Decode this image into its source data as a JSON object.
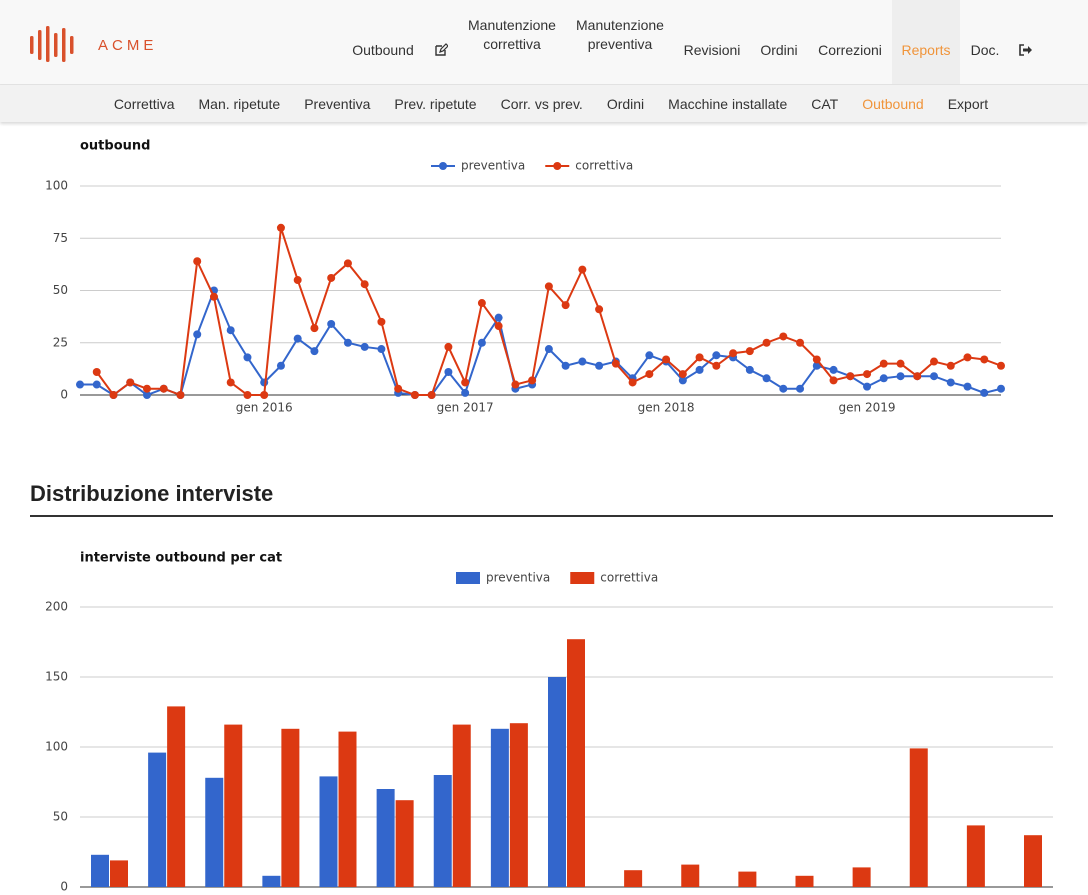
{
  "header": {
    "logo": "ACME",
    "nav": [
      {
        "label": "Outbound"
      },
      {
        "label": "Manutenzione correttiva"
      },
      {
        "label": "Manutenzione preventiva"
      },
      {
        "label": "Revisioni"
      },
      {
        "label": "Ordini"
      },
      {
        "label": "Correzioni"
      },
      {
        "label": "Reports",
        "active": true
      },
      {
        "label": "Doc."
      }
    ],
    "subnav": [
      {
        "label": "Correttiva"
      },
      {
        "label": "Man. ripetute"
      },
      {
        "label": "Preventiva"
      },
      {
        "label": "Prev. ripetute"
      },
      {
        "label": "Corr. vs prev."
      },
      {
        "label": "Ordini"
      },
      {
        "label": "Macchine installate"
      },
      {
        "label": "CAT"
      },
      {
        "label": "Outbound",
        "active": true
      },
      {
        "label": "Export"
      }
    ]
  },
  "section_title": "Distribuzione interviste",
  "chart_data": [
    {
      "type": "line",
      "title": "outbound",
      "x": [
        "2015-02",
        "2015-03",
        "2015-04",
        "2015-05",
        "2015-06",
        "2015-07",
        "2015-08",
        "2015-09",
        "2015-10",
        "2015-11",
        "2015-12",
        "2016-01",
        "2016-02",
        "2016-03",
        "2016-04",
        "2016-05",
        "2016-06",
        "2016-07",
        "2016-08",
        "2016-09",
        "2016-10",
        "2016-11",
        "2016-12",
        "2017-01",
        "2017-02",
        "2017-03",
        "2017-04",
        "2017-05",
        "2017-06",
        "2017-07",
        "2017-08",
        "2017-09",
        "2017-10",
        "2017-11",
        "2017-12",
        "2018-01",
        "2018-02",
        "2018-03",
        "2018-04",
        "2018-05",
        "2018-06",
        "2018-07",
        "2018-08",
        "2018-09",
        "2018-10",
        "2018-11",
        "2018-12",
        "2019-01",
        "2019-02",
        "2019-03",
        "2019-04",
        "2019-05",
        "2019-06",
        "2019-07",
        "2019-08",
        "2019-09"
      ],
      "series": [
        {
          "name": "preventiva",
          "color": "#3366cc",
          "values": [
            5,
            5,
            0,
            6,
            0,
            3,
            0,
            29,
            50,
            31,
            18,
            6,
            14,
            27,
            21,
            34,
            25,
            23,
            22,
            1,
            0,
            0,
            11,
            1,
            25,
            37,
            3,
            5,
            22,
            14,
            16,
            14,
            16,
            8,
            19,
            16,
            7,
            12,
            19,
            18,
            12,
            8,
            3,
            3,
            14,
            12,
            9,
            4,
            8,
            9,
            9,
            9,
            6,
            4,
            1,
            3
          ]
        },
        {
          "name": "correttiva",
          "color": "#dc3912",
          "values": [
            null,
            11,
            0,
            6,
            3,
            3,
            0,
            64,
            47,
            6,
            0,
            0,
            80,
            55,
            32,
            56,
            63,
            53,
            35,
            3,
            0,
            0,
            23,
            6,
            44,
            33,
            5,
            7,
            52,
            43,
            60,
            41,
            15,
            6,
            10,
            17,
            10,
            18,
            14,
            20,
            21,
            25,
            28,
            25,
            17,
            7,
            9,
            10,
            15,
            15,
            9,
            16,
            14,
            18,
            17,
            14
          ]
        }
      ],
      "xticks": [
        {
          "value": "2016-01",
          "label": "gen 2016"
        },
        {
          "value": "2017-01",
          "label": "gen 2017"
        },
        {
          "value": "2018-01",
          "label": "gen 2018"
        },
        {
          "value": "2019-01",
          "label": "gen 2019"
        }
      ],
      "ylim": [
        0,
        100
      ],
      "yticks": [
        0,
        25,
        50,
        75,
        100
      ],
      "grid": true,
      "legend": "top"
    },
    {
      "type": "bar",
      "title": "interviste outbound per cat",
      "categories": [
        null,
        null,
        null,
        null,
        null,
        null,
        null,
        null,
        null,
        null,
        null,
        null,
        null,
        null,
        null,
        null,
        null
      ],
      "series": [
        {
          "name": "preventiva",
          "color": "#3366cc",
          "values": [
            23,
            96,
            78,
            8,
            79,
            70,
            80,
            113,
            150,
            null,
            null,
            null,
            null,
            null,
            null,
            null,
            null
          ]
        },
        {
          "name": "correttiva",
          "color": "#dc3912",
          "values": [
            19,
            129,
            116,
            113,
            111,
            62,
            116,
            117,
            177,
            12,
            16,
            11,
            8,
            14,
            99,
            44,
            37
          ]
        }
      ],
      "ylim": [
        0,
        200
      ],
      "yticks": [
        0,
        50,
        100,
        150,
        200
      ],
      "grid": true,
      "legend": "top"
    }
  ]
}
